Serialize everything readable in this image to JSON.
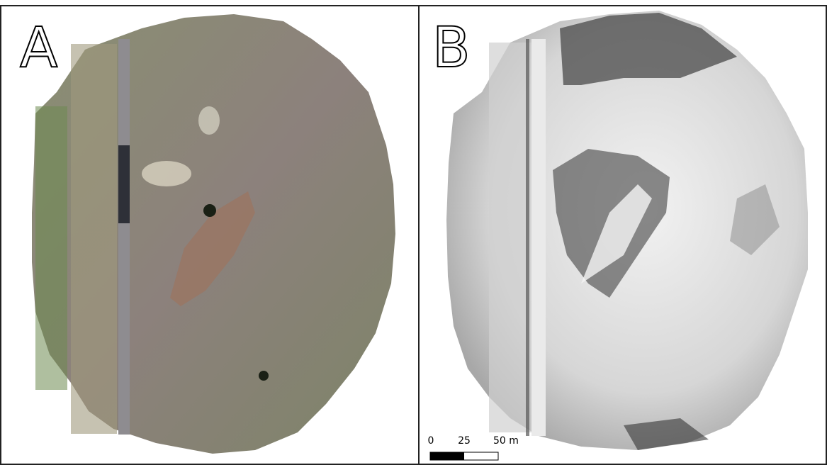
{
  "panels": [
    {
      "label": "A"
    },
    {
      "label": "B"
    }
  ],
  "scale_bar": {
    "labels": [
      "0",
      "25",
      "50 m"
    ]
  }
}
